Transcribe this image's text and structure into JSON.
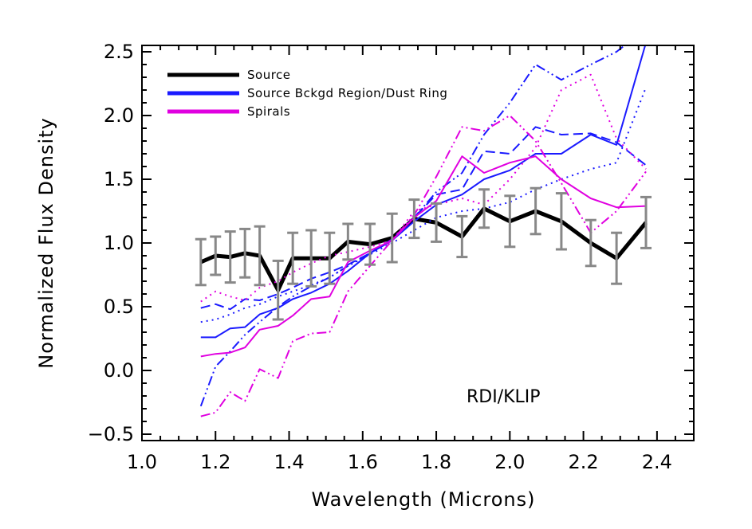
{
  "chart_data": {
    "type": "line",
    "xlabel": "Wavelength (Microns)",
    "ylabel": "Normalized Flux Density",
    "xlim": [
      1.0,
      2.5
    ],
    "ylim": [
      -0.55,
      2.55
    ],
    "x_ticks": [
      "1.0",
      "1.2",
      "1.4",
      "1.6",
      "1.8",
      "2.0",
      "2.2",
      "2.4"
    ],
    "y_ticks": [
      "-0.5",
      "0.0",
      "0.5",
      "1.0",
      "1.5",
      "2.0",
      "2.5"
    ],
    "annotation": "RDI/KLIP",
    "grid": false,
    "legend_position": "top-left",
    "legend": [
      {
        "label": "Source",
        "color": "#000000"
      },
      {
        "label": "Source Bckgd Region/Dust Ring",
        "color": "#1a1aff"
      },
      {
        "label": "Spirals",
        "color": "#e000e0"
      }
    ],
    "x": [
      1.16,
      1.2,
      1.24,
      1.28,
      1.32,
      1.37,
      1.41,
      1.46,
      1.51,
      1.56,
      1.62,
      1.68,
      1.74,
      1.8,
      1.87,
      1.93,
      2.0,
      2.07,
      2.14,
      2.22,
      2.29,
      2.37
    ],
    "series": [
      {
        "group": "Source",
        "color": "#000000",
        "style": "solid",
        "values": [
          0.85,
          0.9,
          0.89,
          0.92,
          0.9,
          0.63,
          0.88,
          0.88,
          0.88,
          1.01,
          0.99,
          1.04,
          1.19,
          1.16,
          1.05,
          1.27,
          1.17,
          1.25,
          1.17,
          1.0,
          0.88,
          1.16
        ],
        "error": [
          0.18,
          0.15,
          0.2,
          0.19,
          0.23,
          0.23,
          0.2,
          0.22,
          0.2,
          0.14,
          0.16,
          0.19,
          0.15,
          0.15,
          0.16,
          0.15,
          0.2,
          0.18,
          0.22,
          0.18,
          0.2,
          0.2
        ]
      },
      {
        "group": "Source Bckgd Region/Dust Ring",
        "color": "#1a1aff",
        "style": "solid",
        "values": [
          0.26,
          0.26,
          0.33,
          0.34,
          0.44,
          0.49,
          0.56,
          0.61,
          0.68,
          0.78,
          0.92,
          1.02,
          1.17,
          1.3,
          1.38,
          1.5,
          1.57,
          1.7,
          1.7,
          1.85,
          1.77,
          2.57
        ]
      },
      {
        "group": "Source Bckgd Region/Dust Ring",
        "color": "#1a1aff",
        "style": "dashed",
        "values": [
          0.49,
          0.52,
          0.48,
          0.56,
          0.55,
          0.6,
          0.65,
          0.72,
          0.77,
          0.83,
          0.92,
          1.03,
          1.2,
          1.38,
          1.42,
          1.72,
          1.7,
          1.91,
          1.85,
          1.86,
          1.79,
          1.61
        ]
      },
      {
        "group": "Source Bckgd Region/Dust Ring",
        "color": "#1a1aff",
        "style": "dotted",
        "values": [
          0.38,
          0.4,
          0.44,
          0.49,
          0.52,
          0.58,
          0.62,
          0.67,
          0.73,
          0.82,
          0.91,
          1.0,
          1.1,
          1.2,
          1.25,
          1.27,
          1.32,
          1.42,
          1.5,
          1.58,
          1.63,
          2.22
        ]
      },
      {
        "group": "Source Bckgd Region/Dust Ring",
        "color": "#1a1aff",
        "style": "dashdotdot",
        "values": [
          -0.28,
          0.03,
          0.15,
          0.28,
          0.38,
          0.5,
          0.58,
          0.66,
          0.73,
          0.82,
          0.92,
          1.02,
          1.2,
          1.4,
          1.55,
          1.85,
          2.1,
          2.4,
          2.28,
          2.4,
          2.5,
          2.68
        ]
      },
      {
        "group": "Spirals",
        "color": "#e000e0",
        "style": "solid",
        "values": [
          0.11,
          0.13,
          0.14,
          0.18,
          0.32,
          0.35,
          0.43,
          0.56,
          0.58,
          0.85,
          0.94,
          1.02,
          1.2,
          1.33,
          1.68,
          1.55,
          1.63,
          1.68,
          1.5,
          1.35,
          1.28,
          1.29
        ]
      },
      {
        "group": "Spirals",
        "color": "#e000e0",
        "style": "dotted",
        "values": [
          0.54,
          0.62,
          0.58,
          0.55,
          0.65,
          0.7,
          0.77,
          0.84,
          0.9,
          0.93,
          0.97,
          1.02,
          1.25,
          1.3,
          1.35,
          1.3,
          1.5,
          1.75,
          2.2,
          2.32,
          1.82,
          1.58
        ]
      },
      {
        "group": "Spirals",
        "color": "#e000e0",
        "style": "dashdotdot",
        "values": [
          -0.36,
          -0.33,
          -0.17,
          -0.24,
          0.01,
          -0.06,
          0.23,
          0.29,
          0.3,
          0.62,
          0.82,
          1.02,
          1.22,
          1.52,
          1.91,
          1.88,
          2.0,
          1.8,
          1.47,
          1.08,
          1.25,
          1.56
        ]
      }
    ]
  }
}
